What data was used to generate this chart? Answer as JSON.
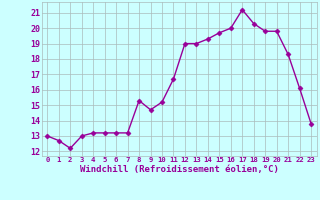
{
  "x": [
    0,
    1,
    2,
    3,
    4,
    5,
    6,
    7,
    8,
    9,
    10,
    11,
    12,
    13,
    14,
    15,
    16,
    17,
    18,
    19,
    20,
    21,
    22,
    23
  ],
  "y": [
    13,
    12.7,
    12.2,
    13,
    13.2,
    13.2,
    13.2,
    13.2,
    15.3,
    14.7,
    15.2,
    16.7,
    19.0,
    19.0,
    19.3,
    19.7,
    20.0,
    21.2,
    20.3,
    19.8,
    19.8,
    18.3,
    16.1,
    13.8
  ],
  "line_color": "#990099",
  "marker": "D",
  "markersize": 2.5,
  "linewidth": 1.0,
  "xlabel": "Windchill (Refroidissement éolien,°C)",
  "xlabel_fontsize": 6.5,
  "ylabel_ticks": [
    12,
    13,
    14,
    15,
    16,
    17,
    18,
    19,
    20,
    21
  ],
  "xtick_labels": [
    "0",
    "1",
    "2",
    "3",
    "4",
    "5",
    "6",
    "7",
    "8",
    "9",
    "10",
    "11",
    "12",
    "13",
    "14",
    "15",
    "16",
    "17",
    "18",
    "19",
    "20",
    "21",
    "22",
    "23"
  ],
  "ylim": [
    11.7,
    21.7
  ],
  "xlim": [
    -0.5,
    23.5
  ],
  "bg_color": "#ccffff",
  "grid_color": "#aabbbb",
  "tick_color": "#990099",
  "font_color": "#990099",
  "ytick_fontsize": 6.0,
  "xtick_fontsize": 5.2
}
